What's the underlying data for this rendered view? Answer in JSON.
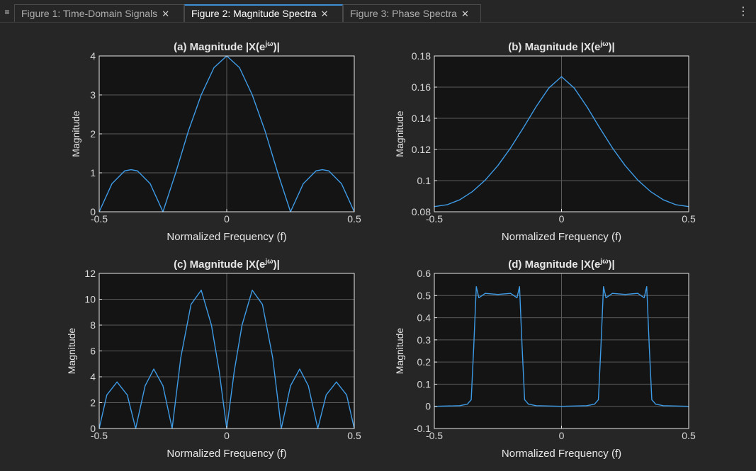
{
  "tabs": {
    "menu_icon": "≡",
    "items": [
      {
        "label": "Figure 1: Time-Domain Signals",
        "close": "✕",
        "active": false
      },
      {
        "label": "Figure 2: Magnitude Spectra",
        "close": "✕",
        "active": true
      },
      {
        "label": "Figure 3: Phase Spectra",
        "close": "✕",
        "active": false
      }
    ],
    "kebab_icon": "⋮"
  },
  "colors": {
    "background": "#262626",
    "axes_bg": "#141414",
    "axes_border": "#e6e6e6",
    "grid": "#5a5a5a",
    "line": "#3e9be6",
    "text": "#e6e6e6",
    "tick_text": "#d9d9d9"
  },
  "chart_data": [
    {
      "type": "line",
      "title_prefix": "(a)  Magnitude  ",
      "title_math": "|X(e^{jω})|",
      "xlabel": "Normalized Frequency (f)",
      "ylabel": "Magnitude",
      "xlim": [
        -0.5,
        0.5
      ],
      "ylim": [
        0,
        4
      ],
      "xticks": [
        -0.5,
        0,
        0.5
      ],
      "xtick_labels": [
        "-0.5",
        "0",
        "0.5"
      ],
      "yticks": [
        0,
        1,
        2,
        3,
        4
      ],
      "ytick_labels": [
        "0",
        "1",
        "2",
        "3",
        "4"
      ],
      "grid": true,
      "series": [
        {
          "x": [
            -0.5,
            -0.45,
            -0.4,
            -0.375,
            -0.35,
            -0.3,
            -0.25,
            -0.2,
            -0.15,
            -0.1,
            -0.05,
            0,
            0.05,
            0.1,
            0.15,
            0.2,
            0.25,
            0.3,
            0.35,
            0.375,
            0.4,
            0.45,
            0.5
          ],
          "y": [
            0,
            0.72,
            1.05,
            1.08,
            1.05,
            0.72,
            0,
            1.0,
            2.08,
            3.0,
            3.7,
            4.0,
            3.7,
            3.0,
            2.08,
            1.0,
            0,
            0.72,
            1.05,
            1.08,
            1.05,
            0.72,
            0
          ]
        }
      ]
    },
    {
      "type": "line",
      "title_prefix": "(b)  Magnitude  ",
      "title_math": "|X(e^{jω})|",
      "xlabel": "Normalized Frequency (f)",
      "ylabel": "Magnitude",
      "xlim": [
        -0.5,
        0.5
      ],
      "ylim": [
        0.08,
        0.18
      ],
      "xticks": [
        -0.5,
        0,
        0.5
      ],
      "xtick_labels": [
        "-0.5",
        "0",
        "0.5"
      ],
      "yticks": [
        0.08,
        0.1,
        0.12,
        0.14,
        0.16,
        0.18
      ],
      "ytick_labels": [
        "0.08",
        "0.1",
        "0.12",
        "0.14",
        "0.16",
        "0.18"
      ],
      "grid": true,
      "series": [
        {
          "x": [
            -0.5,
            -0.45,
            -0.4,
            -0.35,
            -0.3,
            -0.25,
            -0.2,
            -0.15,
            -0.1,
            -0.05,
            0,
            0.05,
            0.1,
            0.15,
            0.2,
            0.25,
            0.3,
            0.35,
            0.4,
            0.45,
            0.5
          ],
          "y": [
            0.0833,
            0.0845,
            0.0877,
            0.093,
            0.1003,
            0.1097,
            0.121,
            0.1339,
            0.1474,
            0.1594,
            0.1667,
            0.1594,
            0.1474,
            0.1339,
            0.121,
            0.1097,
            0.1003,
            0.093,
            0.0877,
            0.0845,
            0.0833
          ]
        }
      ]
    },
    {
      "type": "line",
      "title_prefix": "(c)  Magnitude  ",
      "title_math": "|X(e^{jω})|",
      "xlabel": "Normalized Frequency (f)",
      "ylabel": "Magnitude",
      "xlim": [
        -0.5,
        0.5
      ],
      "ylim": [
        0,
        12
      ],
      "xticks": [
        -0.5,
        0,
        0.5
      ],
      "xtick_labels": [
        "-0.5",
        "0",
        "0.5"
      ],
      "yticks": [
        0,
        2,
        4,
        6,
        8,
        10,
        12
      ],
      "ytick_labels": [
        "0",
        "2",
        "4",
        "6",
        "8",
        "10",
        "12"
      ],
      "grid": true,
      "series": [
        {
          "x": [
            -0.5,
            -0.47,
            -0.43,
            -0.39,
            -0.357,
            -0.32,
            -0.286,
            -0.25,
            -0.214,
            -0.18,
            -0.14,
            -0.1,
            -0.06,
            -0.03,
            0,
            0.03,
            0.06,
            0.1,
            0.14,
            0.18,
            0.214,
            0.25,
            0.286,
            0.32,
            0.357,
            0.39,
            0.43,
            0.47,
            0.5
          ],
          "y": [
            0,
            2.6,
            3.6,
            2.6,
            0,
            3.3,
            4.6,
            3.3,
            0,
            5.5,
            9.6,
            10.7,
            8.0,
            4.5,
            0,
            4.5,
            8.0,
            10.7,
            9.6,
            5.5,
            0,
            3.3,
            4.6,
            3.3,
            0,
            2.6,
            3.6,
            2.6,
            0
          ]
        }
      ]
    },
    {
      "type": "line",
      "title_prefix": "(d)  Magnitude  ",
      "title_math": "|X(e^{jω})|",
      "xlabel": "Normalized Frequency (f)",
      "ylabel": "Magnitude",
      "xlim": [
        -0.5,
        0.5
      ],
      "ylim": [
        -0.1,
        0.6
      ],
      "xticks": [
        -0.5,
        0,
        0.5
      ],
      "xtick_labels": [
        "-0.5",
        "0",
        "0.5"
      ],
      "yticks": [
        -0.1,
        0,
        0.1,
        0.2,
        0.3,
        0.4,
        0.5,
        0.6
      ],
      "ytick_labels": [
        "-0.1",
        "0",
        "0.1",
        "0.2",
        "0.3",
        "0.4",
        "0.5",
        "0.6"
      ],
      "grid": true,
      "series": [
        {
          "x": [
            -0.5,
            -0.4,
            -0.37,
            -0.355,
            -0.345,
            -0.335,
            -0.325,
            -0.3,
            -0.25,
            -0.2,
            -0.175,
            -0.165,
            -0.155,
            -0.145,
            -0.13,
            -0.1,
            0,
            0.1,
            0.13,
            0.145,
            0.155,
            0.165,
            0.175,
            0.2,
            0.25,
            0.3,
            0.325,
            0.335,
            0.345,
            0.355,
            0.37,
            0.4,
            0.5
          ],
          "y": [
            0.0,
            0.003,
            0.01,
            0.03,
            0.27,
            0.54,
            0.49,
            0.51,
            0.505,
            0.51,
            0.49,
            0.54,
            0.27,
            0.03,
            0.01,
            0.003,
            0.0,
            0.003,
            0.01,
            0.03,
            0.27,
            0.54,
            0.49,
            0.51,
            0.505,
            0.51,
            0.49,
            0.54,
            0.27,
            0.03,
            0.01,
            0.003,
            0.0
          ]
        }
      ]
    }
  ]
}
